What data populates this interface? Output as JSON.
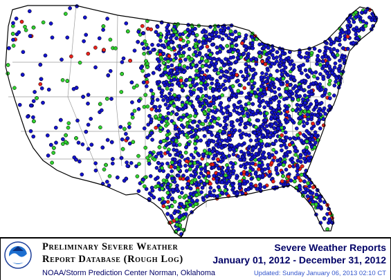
{
  "map": {
    "colors": {
      "tornado": "#e8221c",
      "hail": "#2fcf2f",
      "wind": "#1313cc",
      "outline": "#000000",
      "boundary": "#9a9a9a"
    }
  },
  "footer": {
    "title_line_1": "Preliminary Severe Weather",
    "title_line_2": "Report Database (Rough Log)",
    "org": "NOAA/Storm Prediction Center   Norman, Oklahoma",
    "header": "Severe Weather Reports",
    "date_range": "January 01, 2012 - December 31, 2012",
    "updated": "Updated:  Sunday January 06, 2013 02:10 CT",
    "logo_text": "NOAA"
  }
}
